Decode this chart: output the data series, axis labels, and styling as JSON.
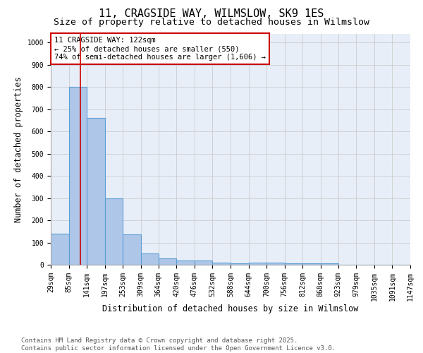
{
  "title": "11, CRAGSIDE WAY, WILMSLOW, SK9 1ES",
  "subtitle": "Size of property relative to detached houses in Wilmslow",
  "xlabel": "Distribution of detached houses by size in Wilmslow",
  "ylabel": "Number of detached properties",
  "bar_values": [
    140,
    800,
    660,
    300,
    135,
    52,
    28,
    18,
    18,
    10,
    5,
    8,
    8,
    5,
    5,
    5,
    0,
    0,
    0,
    0
  ],
  "bin_edges": [
    29,
    85,
    141,
    197,
    253,
    309,
    364,
    420,
    476,
    532,
    588,
    644,
    700,
    756,
    812,
    868,
    923,
    979,
    1035,
    1091,
    1147
  ],
  "tick_labels": [
    "29sqm",
    "85sqm",
    "141sqm",
    "197sqm",
    "253sqm",
    "309sqm",
    "364sqm",
    "420sqm",
    "476sqm",
    "532sqm",
    "588sqm",
    "644sqm",
    "700sqm",
    "756sqm",
    "812sqm",
    "868sqm",
    "923sqm",
    "979sqm",
    "1035sqm",
    "1091sqm",
    "1147sqm"
  ],
  "bar_color": "#aec6e8",
  "bar_edge_color": "#5a9fd4",
  "bar_linewidth": 0.8,
  "vline_x": 122,
  "vline_color": "#cc0000",
  "vline_linewidth": 1.2,
  "annotation_line1": "11 CRAGSIDE WAY: 122sqm",
  "annotation_line2": "← 25% of detached houses are smaller (550)",
  "annotation_line3": "74% of semi-detached houses are larger (1,606) →",
  "annotation_box_color": "#ffffff",
  "annotation_box_edge_color": "#cc0000",
  "ylim": [
    0,
    1040
  ],
  "yticks": [
    0,
    100,
    200,
    300,
    400,
    500,
    600,
    700,
    800,
    900,
    1000
  ],
  "grid_color": "#cccccc",
  "background_color": "#e8eef8",
  "footer_text": "Contains HM Land Registry data © Crown copyright and database right 2025.\nContains public sector information licensed under the Open Government Licence v3.0.",
  "title_fontsize": 11,
  "subtitle_fontsize": 9.5,
  "xlabel_fontsize": 8.5,
  "ylabel_fontsize": 8.5,
  "tick_fontsize": 7,
  "annotation_fontsize": 7.5,
  "footer_fontsize": 6.5
}
